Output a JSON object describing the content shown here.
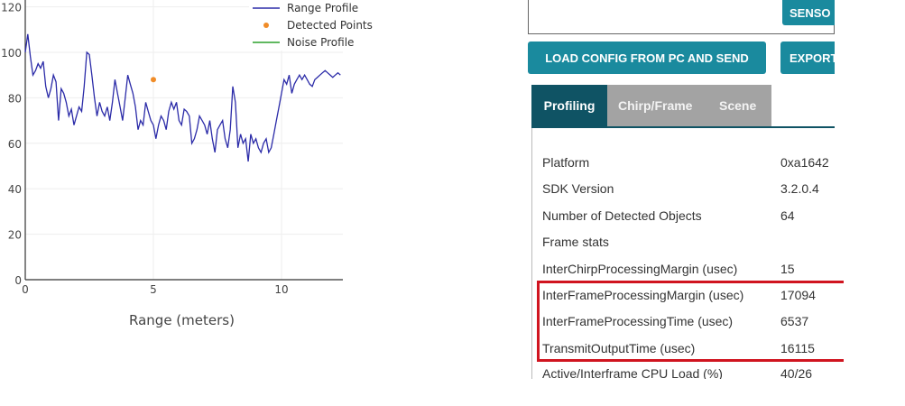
{
  "chart_data": {
    "type": "line",
    "xlabel": "Range (meters)",
    "ylabel": "",
    "x_ticks": [
      "0",
      "5",
      "10"
    ],
    "y_ticks": [
      "0",
      "20",
      "40",
      "60",
      "80",
      "100",
      "120"
    ],
    "xlim": [
      0,
      12.4
    ],
    "ylim": [
      0,
      120
    ],
    "legend": [
      "Range Profile",
      "Detected Points",
      "Noise Profile"
    ],
    "legend_position": "top-right",
    "series": [
      {
        "name": "Range Profile",
        "color": "#2b2ba8",
        "x": [
          0,
          0.1,
          0.2,
          0.3,
          0.4,
          0.5,
          0.6,
          0.7,
          0.8,
          0.9,
          1.0,
          1.1,
          1.2,
          1.3,
          1.4,
          1.5,
          1.6,
          1.7,
          1.8,
          1.9,
          2.0,
          2.1,
          2.2,
          2.3,
          2.4,
          2.5,
          2.6,
          2.7,
          2.8,
          2.9,
          3.0,
          3.1,
          3.2,
          3.3,
          3.4,
          3.5,
          3.6,
          3.7,
          3.8,
          3.9,
          4.0,
          4.1,
          4.2,
          4.3,
          4.4,
          4.5,
          4.6,
          4.7,
          4.8,
          4.9,
          5.0,
          5.1,
          5.2,
          5.3,
          5.4,
          5.5,
          5.6,
          5.7,
          5.8,
          5.9,
          6.0,
          6.1,
          6.2,
          6.3,
          6.4,
          6.5,
          6.6,
          6.7,
          6.8,
          6.9,
          7.0,
          7.1,
          7.2,
          7.3,
          7.4,
          7.5,
          7.6,
          7.7,
          7.8,
          7.9,
          8.0,
          8.1,
          8.2,
          8.3,
          8.4,
          8.5,
          8.6,
          8.7,
          8.8,
          8.9,
          9.0,
          9.1,
          9.2,
          9.3,
          9.4,
          9.5,
          9.6,
          9.7,
          9.8,
          9.9,
          10.0,
          10.1,
          10.2,
          10.3,
          10.4,
          10.5,
          10.6,
          10.7,
          10.8,
          10.9,
          11.0,
          11.1,
          11.2,
          11.3,
          11.4,
          11.5,
          11.6,
          11.7,
          11.8,
          11.9,
          12.0,
          12.1,
          12.2,
          12.3
        ],
        "y": [
          100,
          108,
          98,
          90,
          92,
          95,
          93,
          96,
          85,
          80,
          84,
          90,
          87,
          70,
          84,
          82,
          78,
          72,
          75,
          68,
          72,
          76,
          74,
          85,
          100,
          99,
          90,
          80,
          72,
          78,
          74,
          72,
          76,
          70,
          78,
          88,
          82,
          76,
          70,
          80,
          90,
          86,
          82,
          76,
          66,
          70,
          68,
          78,
          74,
          70,
          68,
          62,
          68,
          72,
          70,
          66,
          74,
          78,
          75,
          78,
          70,
          68,
          75,
          74,
          72,
          60,
          62,
          66,
          72,
          70,
          68,
          64,
          70,
          62,
          56,
          66,
          68,
          70,
          62,
          58,
          66,
          85,
          78,
          58,
          64,
          60,
          62,
          52,
          64,
          60,
          62,
          58,
          56,
          60,
          62,
          56,
          58,
          64,
          70,
          76,
          82,
          88,
          86,
          90,
          82,
          86,
          88,
          90,
          88,
          90,
          88,
          86,
          85,
          88,
          89,
          90,
          91,
          92,
          91,
          90,
          89,
          90,
          91,
          90
        ]
      },
      {
        "name": "Detected Points",
        "color": "#f08c28",
        "x": [
          5.0
        ],
        "y": [
          88
        ]
      },
      {
        "name": "Noise Profile",
        "color": "#2ca02c",
        "x": [],
        "y": []
      }
    ]
  },
  "buttons": {
    "senso": "SENSO",
    "load_config": "LOAD CONFIG FROM PC AND SEND",
    "export": "EXPORT"
  },
  "tabs": [
    {
      "label": "Profiling",
      "active": true
    },
    {
      "label": "Chirp/Frame",
      "active": false
    },
    {
      "label": "Scene",
      "active": false
    }
  ],
  "stats": [
    {
      "label": "Platform",
      "value": "0xa1642"
    },
    {
      "label": "SDK Version",
      "value": "3.2.0.4"
    },
    {
      "label": "Number of Detected Objects",
      "value": "64"
    },
    {
      "label": "Frame stats",
      "value": ""
    },
    {
      "label": "InterChirpProcessingMargin (usec)",
      "value": "15"
    },
    {
      "label": "InterFrameProcessingMargin (usec)",
      "value": "17094"
    },
    {
      "label": "InterFrameProcessingTime (usec)",
      "value": "6537"
    },
    {
      "label": "TransmitOutputTime (usec)",
      "value": "16115"
    },
    {
      "label": "Active/Interframe CPU Load (%)",
      "value": "40/26"
    }
  ]
}
